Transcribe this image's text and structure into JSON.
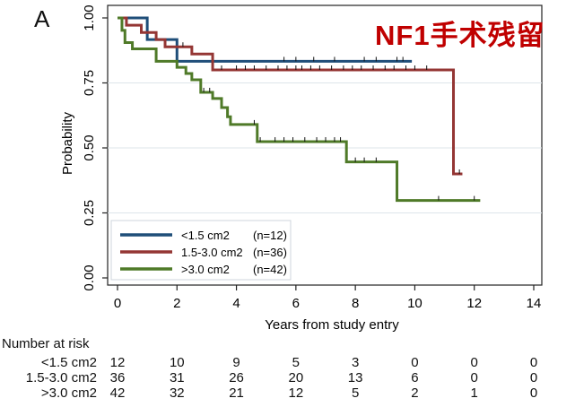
{
  "panel_label": "A",
  "title": "NF1手术残留",
  "chart_data": {
    "type": "line",
    "subtype": "kaplan-meier",
    "xlabel": "Years from study entry",
    "ylabel": "Probability",
    "xlim": [
      0,
      14
    ],
    "ylim": [
      0,
      1
    ],
    "xticks": [
      0,
      2,
      4,
      6,
      8,
      10,
      12,
      14
    ],
    "yticks": [
      0.0,
      0.25,
      0.5,
      0.75,
      1.0
    ],
    "ytick_labels": [
      "0.00",
      "0.25",
      "0.50",
      "0.75",
      "1.00"
    ],
    "grid": true,
    "legend_position": "bottom-left",
    "series": [
      {
        "name": "<1.5 cm2",
        "n_label": "(n=12)",
        "color": "#1f4e79",
        "steps": [
          [
            0,
            1.0
          ],
          [
            1.0,
            0.917
          ],
          [
            2.0,
            0.833
          ],
          [
            9.9,
            0.833
          ]
        ],
        "censored": [
          5.6,
          6.0,
          6.6,
          7.3,
          8.3,
          8.7,
          9.4,
          9.6
        ]
      },
      {
        "name": "1.5-3.0 cm2",
        "n_label": "(n=36)",
        "color": "#943634",
        "steps": [
          [
            0,
            1.0
          ],
          [
            0.3,
            0.972
          ],
          [
            0.8,
            0.944
          ],
          [
            1.3,
            0.917
          ],
          [
            1.6,
            0.889
          ],
          [
            2.5,
            0.861
          ],
          [
            3.2,
            0.8
          ],
          [
            11.3,
            0.4
          ],
          [
            11.6,
            0.4
          ]
        ],
        "censored": [
          2.2,
          3.5,
          4.0,
          4.3,
          4.6,
          5.0,
          5.4,
          5.7,
          6.0,
          6.2,
          6.5,
          6.8,
          7.2,
          7.6,
          7.9,
          8.2,
          8.6,
          9.0,
          9.3,
          9.7,
          10.0,
          10.4,
          11.5
        ]
      },
      {
        "name": ">3.0 cm2",
        "n_label": "(n=42)",
        "color": "#4f7a28",
        "steps": [
          [
            0,
            1.0
          ],
          [
            0.15,
            0.952
          ],
          [
            0.25,
            0.905
          ],
          [
            0.5,
            0.881
          ],
          [
            1.3,
            0.833
          ],
          [
            2.0,
            0.81
          ],
          [
            2.3,
            0.786
          ],
          [
            2.5,
            0.762
          ],
          [
            2.8,
            0.714
          ],
          [
            3.2,
            0.69
          ],
          [
            3.5,
            0.655
          ],
          [
            3.7,
            0.62
          ],
          [
            3.8,
            0.59
          ],
          [
            4.7,
            0.524
          ],
          [
            7.7,
            0.446
          ],
          [
            9.4,
            0.298
          ],
          [
            12.2,
            0.298
          ]
        ],
        "censored": [
          2.9,
          3.1,
          4.6,
          4.8,
          5.3,
          5.6,
          5.9,
          6.3,
          6.7,
          7.0,
          7.3,
          7.5,
          8.0,
          8.3,
          8.7,
          10.8,
          12.0
        ]
      }
    ],
    "risk_table": {
      "header": "Number at risk",
      "times": [
        0,
        2,
        4,
        6,
        8,
        10,
        12,
        14
      ],
      "rows": [
        {
          "label": "<1.5 cm2",
          "values": [
            "12",
            "10",
            "9",
            "5",
            "3",
            "0",
            "0",
            "0"
          ]
        },
        {
          "label": "1.5-3.0 cm2",
          "values": [
            "36",
            "31",
            "26",
            "20",
            "13",
            "6",
            "0",
            "0"
          ]
        },
        {
          "label": ">3.0 cm2",
          "values": [
            "42",
            "32",
            "21",
            "12",
            "5",
            "2",
            "1",
            "0"
          ]
        }
      ]
    }
  }
}
